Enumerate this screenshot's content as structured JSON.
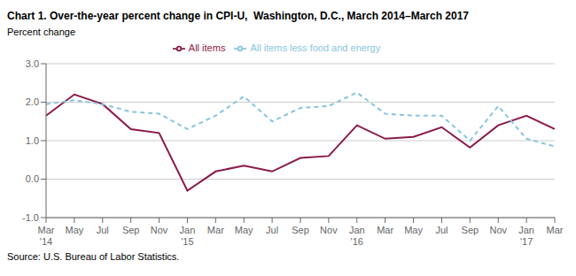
{
  "chart_data": {
    "type": "line",
    "title": "Chart 1. Over-the-year percent change in CPI-U,  Washington, D.C., March 2014–March 2017",
    "y_label": "Percent change",
    "annotations": [
      "Source: U.S. Bureau of Labor Statistics."
    ],
    "categories": [
      "Mar\n'14",
      "May",
      "Jul",
      "Sep",
      "Nov",
      "Jan\n'15",
      "Mar",
      "May",
      "Jul",
      "Sep",
      "Nov",
      "Jan\n'16",
      "Mar",
      "May",
      "Jul",
      "Sep",
      "Nov",
      "Jan\n'17",
      "Mar"
    ],
    "series": [
      {
        "name": "All items",
        "color": "#8B1A4A",
        "line_style": "solid",
        "values": [
          1.65,
          2.2,
          1.95,
          1.3,
          1.2,
          -0.3,
          0.2,
          0.35,
          0.2,
          0.55,
          0.6,
          1.4,
          1.05,
          1.1,
          1.35,
          0.82,
          1.4,
          1.65,
          1.3
        ]
      },
      {
        "name": "All items less food and energy",
        "color": "#89C4E1",
        "line_style": "dashed",
        "values": [
          1.95,
          2.05,
          1.95,
          1.75,
          1.7,
          1.3,
          1.65,
          2.15,
          1.5,
          1.85,
          1.9,
          2.25,
          1.7,
          1.65,
          1.65,
          1.0,
          1.9,
          1.05,
          0.85
        ]
      }
    ],
    "ylim": [
      -1.0,
      3.0
    ],
    "yticks": [
      {
        "value": -1.0,
        "label": "-1.0"
      },
      {
        "value": 0.0,
        "label": "0.0"
      },
      {
        "value": 1.0,
        "label": "1.0"
      },
      {
        "value": 2.0,
        "label": "2.0"
      },
      {
        "value": 3.0,
        "label": "3.0"
      }
    ],
    "grid": true,
    "legend": "top"
  }
}
